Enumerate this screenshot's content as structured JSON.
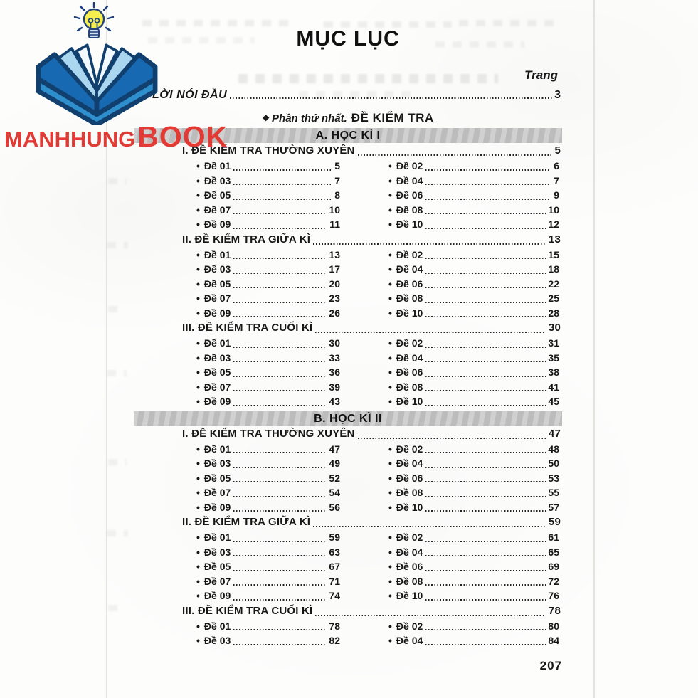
{
  "watermark": {
    "brand_primary": "MANHHUNG",
    "brand_secondary": "BOOK",
    "icon": "open-book-lightbulb-icon",
    "colors": {
      "brand_red": "#e23b36",
      "book_navy": "#11406f",
      "book_blue": "#1769b1",
      "book_light_blue": "#aad6ef",
      "base_blue": "#2f8fcd",
      "bulb_yellow": "#f6ee4e"
    }
  },
  "toc": {
    "title": "MỤC LỤC",
    "column_label": "Trang",
    "preface": {
      "label": "LỜI NÓI ĐẦU",
      "page": "3"
    },
    "part": {
      "marker": "❖",
      "name": "Phần thứ nhất.",
      "title": "ĐỀ KIỂM TRA"
    },
    "footer_page_number": "207",
    "sections": [
      {
        "banner": "A. HỌC KÌ I",
        "subsections": [
          {
            "heading": "I. ĐỀ KIỂM TRA THƯỜNG XUYÊN",
            "page": "5",
            "entries": [
              [
                "Đề 01",
                "5"
              ],
              [
                "Đề 02",
                "6"
              ],
              [
                "Đề 03",
                "7"
              ],
              [
                "Đề 04",
                "7"
              ],
              [
                "Đề 05",
                "8"
              ],
              [
                "Đề 06",
                "9"
              ],
              [
                "Đề 07",
                "10"
              ],
              [
                "Đề 08",
                "10"
              ],
              [
                "Đề 09",
                "11"
              ],
              [
                "Đề 10",
                "12"
              ]
            ]
          },
          {
            "heading": "II. ĐỀ KIỂM TRA GIỮA KÌ",
            "page": "13",
            "entries": [
              [
                "Đề 01",
                "13"
              ],
              [
                "Đề 02",
                "15"
              ],
              [
                "Đề 03",
                "17"
              ],
              [
                "Đề 04",
                "18"
              ],
              [
                "Đề 05",
                "20"
              ],
              [
                "Đề 06",
                "22"
              ],
              [
                "Đề 07",
                "23"
              ],
              [
                "Đề 08",
                "25"
              ],
              [
                "Đề 09",
                "26"
              ],
              [
                "Đề 10",
                "28"
              ]
            ]
          },
          {
            "heading": "III. ĐỀ KIỂM TRA CUỐI KÌ",
            "page": "30",
            "entries": [
              [
                "Đề 01",
                "30"
              ],
              [
                "Đề 02",
                "31"
              ],
              [
                "Đề 03",
                "33"
              ],
              [
                "Đề 04",
                "35"
              ],
              [
                "Đề 05",
                "36"
              ],
              [
                "Đề 06",
                "38"
              ],
              [
                "Đề 07",
                "39"
              ],
              [
                "Đề 08",
                "41"
              ],
              [
                "Đề 09",
                "43"
              ],
              [
                "Đề 10",
                "45"
              ]
            ]
          }
        ]
      },
      {
        "banner": "B. HỌC KÌ II",
        "subsections": [
          {
            "heading": "I. ĐỀ KIỂM TRA THƯỜNG XUYÊN",
            "page": "47",
            "entries": [
              [
                "Đề 01",
                "47"
              ],
              [
                "Đề 02",
                "48"
              ],
              [
                "Đề 03",
                "49"
              ],
              [
                "Đề 04",
                "50"
              ],
              [
                "Đề 05",
                "52"
              ],
              [
                "Đề 06",
                "53"
              ],
              [
                "Đề 07",
                "54"
              ],
              [
                "Đề 08",
                "55"
              ],
              [
                "Đề 09",
                "56"
              ],
              [
                "Đề 10",
                "57"
              ]
            ]
          },
          {
            "heading": "II. ĐỀ KIỂM TRA GIỮA KÌ",
            "page": "59",
            "entries": [
              [
                "Đề 01",
                "59"
              ],
              [
                "Đề 02",
                "61"
              ],
              [
                "Đề 03",
                "63"
              ],
              [
                "Đề 04",
                "65"
              ],
              [
                "Đề 05",
                "67"
              ],
              [
                "Đề 06",
                "69"
              ],
              [
                "Đề 07",
                "71"
              ],
              [
                "Đề 08",
                "72"
              ],
              [
                "Đề 09",
                "74"
              ],
              [
                "Đề 10",
                "76"
              ]
            ]
          },
          {
            "heading": "III. ĐỀ KIỂM TRA CUỐI KÌ",
            "page": "78",
            "entries": [
              [
                "Đề 01",
                "78"
              ],
              [
                "Đề 02",
                "80"
              ],
              [
                "Đề 03",
                "82"
              ],
              [
                "Đề 04",
                "84"
              ]
            ]
          }
        ]
      }
    ]
  }
}
